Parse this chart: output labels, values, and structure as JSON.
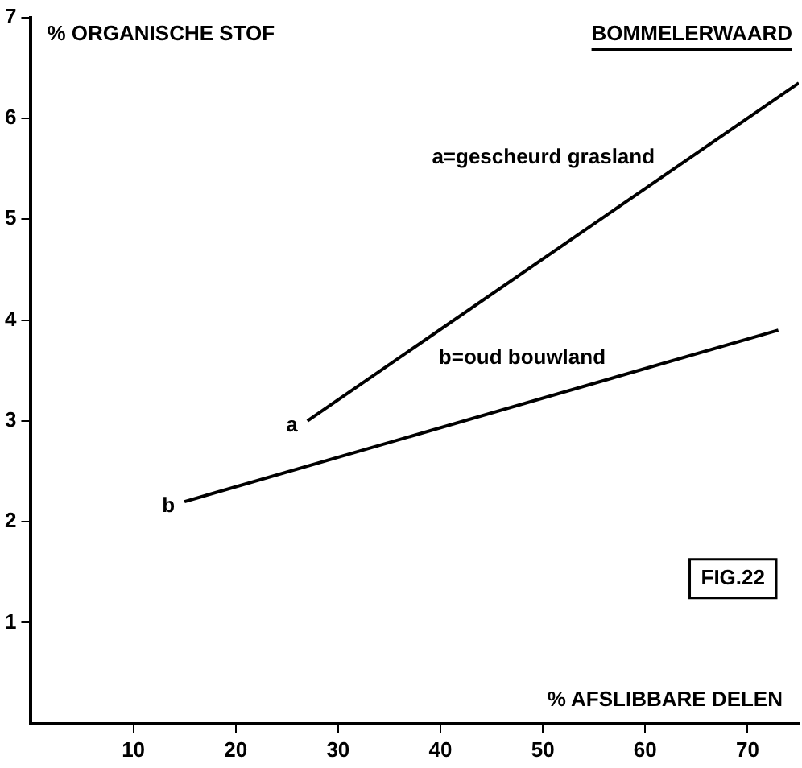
{
  "chart_data": {
    "type": "line",
    "title": "BOMMELERWAARD",
    "xlabel": "% AFSLIBBARE DELEN",
    "ylabel": "% ORGANISCHE STOF",
    "series": [
      {
        "name": "a=gescheurd grasland",
        "color": "#000000",
        "x": [
          27,
          75
        ],
        "values": [
          3.0,
          6.35
        ]
      },
      {
        "name": "b=oud bouwland",
        "color": "#000000",
        "x": [
          15,
          73
        ],
        "values": [
          2.2,
          3.9
        ]
      }
    ],
    "annotations": [
      "a",
      "b",
      "FIG.22"
    ],
    "xlim": [
      0,
      75
    ],
    "xticks": [
      10,
      20,
      30,
      40,
      50,
      60,
      70
    ],
    "ylim": [
      0,
      7
    ],
    "yticks": [
      1,
      2,
      3,
      4,
      5,
      6,
      7
    ],
    "grid": false,
    "legend": false,
    "marker": "none",
    "line_style": "solid"
  }
}
